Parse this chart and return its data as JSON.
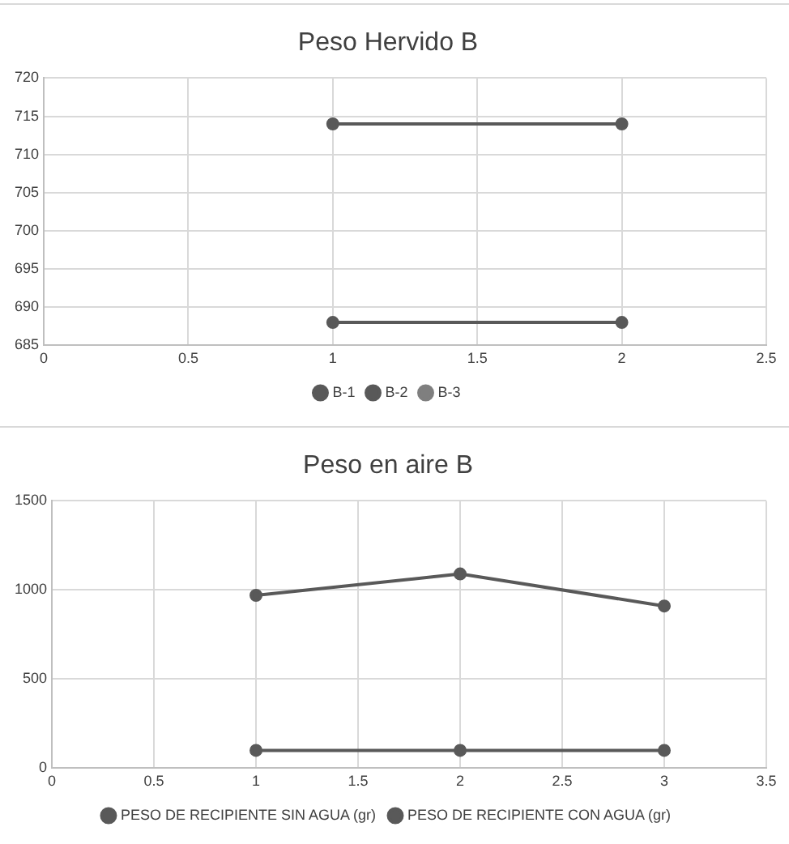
{
  "chart_data": [
    {
      "type": "line",
      "title": "Peso Hervido B",
      "x": [
        1,
        2
      ],
      "series": [
        {
          "name": "B-1",
          "color": "#595959",
          "values": [
            688,
            688
          ]
        },
        {
          "name": "B-2",
          "color": "#595959",
          "values": [
            714,
            714
          ]
        },
        {
          "name": "B-3",
          "color": "#7f7f7f",
          "values": [
            null,
            null
          ]
        }
      ],
      "xlim": [
        0,
        2.5
      ],
      "xticks": [
        0,
        0.5,
        1,
        1.5,
        2,
        2.5
      ],
      "ylim": [
        685,
        720
      ],
      "yticks": [
        685,
        690,
        695,
        700,
        705,
        710,
        715,
        720
      ],
      "grid": true,
      "legend": "bottom",
      "marker": "circle",
      "line_style": "solid"
    },
    {
      "type": "line",
      "title": "Peso en aire B",
      "x": [
        1,
        2,
        3
      ],
      "series": [
        {
          "name": "PESO DE RECIPIENTE SIN AGUA (gr)",
          "color": "#595959",
          "values": [
            100,
            100,
            100
          ]
        },
        {
          "name": "PESO DE RECIPIENTE CON AGUA (gr)",
          "color": "#595959",
          "values": [
            970,
            1090,
            910
          ]
        }
      ],
      "xlim": [
        0,
        3.5
      ],
      "xticks": [
        0,
        0.5,
        1,
        1.5,
        2,
        2.5,
        3,
        3.5
      ],
      "ylim": [
        0,
        1500
      ],
      "yticks": [
        0,
        500,
        1000,
        1500
      ],
      "grid": true,
      "legend": "bottom",
      "marker": "circle",
      "line_style": "solid"
    }
  ]
}
